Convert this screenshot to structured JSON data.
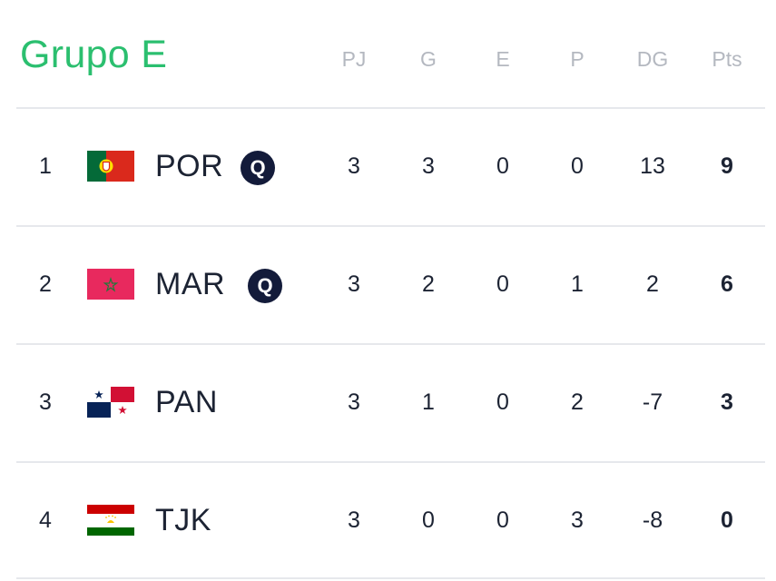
{
  "group": {
    "title": "Grupo E",
    "columns": [
      "PJ",
      "G",
      "E",
      "P",
      "DG",
      "Pts"
    ]
  },
  "standings": [
    {
      "pos": "1",
      "team": "POR",
      "flag": "portugal-flag-icon",
      "qualified": "Q",
      "pj": "3",
      "g": "3",
      "e": "0",
      "p": "0",
      "dg": "13",
      "pts": "9"
    },
    {
      "pos": "2",
      "team": "MAR",
      "flag": "morocco-flag-icon",
      "qualified": "Q",
      "pj": "3",
      "g": "2",
      "e": "0",
      "p": "1",
      "dg": "2",
      "pts": "6"
    },
    {
      "pos": "3",
      "team": "PAN",
      "flag": "panama-flag-icon",
      "qualified": "",
      "pj": "3",
      "g": "1",
      "e": "0",
      "p": "2",
      "dg": "-7",
      "pts": "3"
    },
    {
      "pos": "4",
      "team": "TJK",
      "flag": "tajikistan-flag-icon",
      "qualified": "",
      "pj": "3",
      "g": "0",
      "e": "0",
      "p": "3",
      "dg": "-8",
      "pts": "0"
    }
  ],
  "colors": {
    "title": "#2bbf6f",
    "header_text": "#b4b8c0",
    "badge": "#131b3a",
    "divider": "#e6e8ec"
  }
}
